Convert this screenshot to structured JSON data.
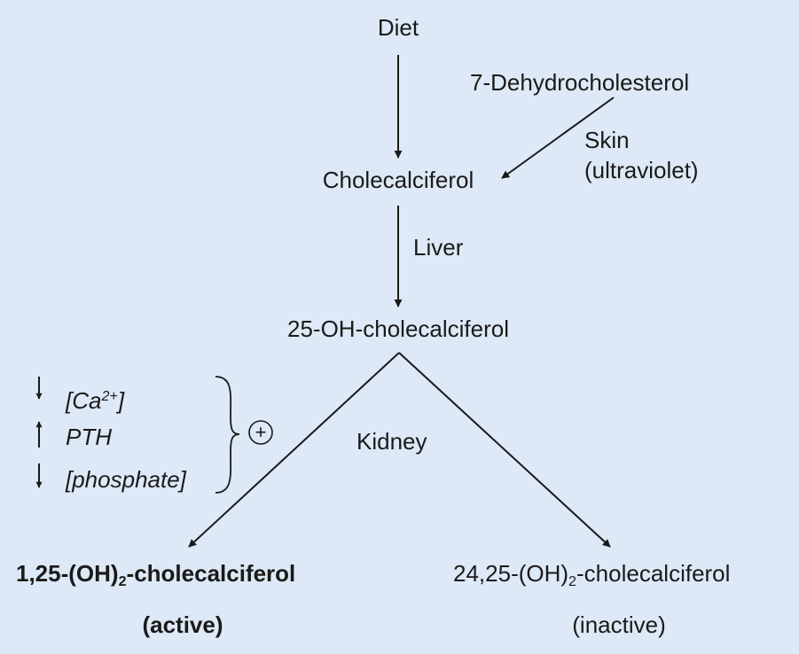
{
  "nodes": {
    "diet": "Diet",
    "dehydrocholesterol": "7-Dehydrocholesterol",
    "cholecalciferol": "Cholecalciferol",
    "hydroxy25": "25-OH-cholecalciferol",
    "active_prefix": "1,25-(OH)",
    "active_sub": "2",
    "active_suffix": "-cholecalciferol",
    "active_note": "(active)",
    "inactive_prefix": "24,25-(OH)",
    "inactive_sub": "2",
    "inactive_suffix": "-cholecalciferol",
    "inactive_note": "(inactive)"
  },
  "edge_labels": {
    "skin": "Skin",
    "ultraviolet": "(ultraviolet)",
    "liver": "Liver",
    "kidney": "Kidney"
  },
  "regulators": {
    "ca_prefix": "[Ca",
    "ca_sup": "2+",
    "ca_suffix": "]",
    "ca_direction": "↓",
    "pth": "PTH",
    "pth_direction": "↑",
    "phosphate": "[phosphate]",
    "phosphate_direction": "↓",
    "effect": "+"
  }
}
